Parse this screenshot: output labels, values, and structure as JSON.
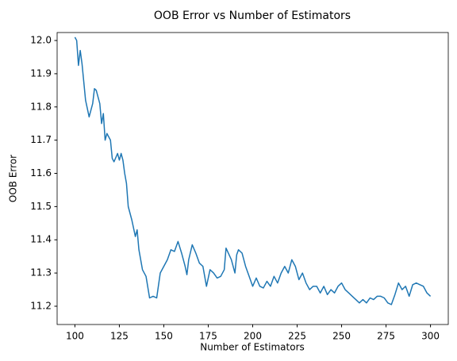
{
  "chart_data": {
    "type": "line",
    "title": "OOB Error vs Number of Estimators",
    "xlabel": "Number of Estimators",
    "ylabel": "OOB Error",
    "x": [
      100,
      101,
      102,
      103,
      104,
      106,
      108,
      110,
      111,
      112,
      114,
      115,
      116,
      117,
      118,
      120,
      121,
      122,
      124,
      125,
      126,
      127,
      128,
      129,
      130,
      132,
      134,
      135,
      136,
      138,
      140,
      142,
      144,
      146,
      148,
      150,
      152,
      154,
      156,
      158,
      160,
      162,
      163,
      164,
      166,
      168,
      170,
      172,
      174,
      176,
      178,
      180,
      182,
      184,
      185,
      188,
      190,
      191,
      192,
      194,
      196,
      198,
      200,
      202,
      204,
      206,
      208,
      210,
      212,
      214,
      216,
      218,
      220,
      222,
      224,
      226,
      228,
      230,
      232,
      234,
      236,
      238,
      240,
      242,
      244,
      246,
      248,
      250,
      252,
      254,
      256,
      258,
      260,
      262,
      264,
      266,
      268,
      270,
      272,
      274,
      276,
      278,
      280,
      282,
      284,
      286,
      288,
      290,
      292,
      294,
      296,
      298,
      300
    ],
    "series": [
      {
        "name": "OOB Error",
        "color": "#1f77b4",
        "values": [
          12.01,
          12.0,
          11.925,
          11.97,
          11.93,
          11.82,
          11.77,
          11.81,
          11.855,
          11.85,
          11.81,
          11.75,
          11.78,
          11.7,
          11.72,
          11.7,
          11.645,
          11.635,
          11.66,
          11.64,
          11.66,
          11.64,
          11.6,
          11.57,
          11.5,
          11.46,
          11.41,
          11.43,
          11.37,
          11.31,
          11.29,
          11.225,
          11.23,
          11.225,
          11.3,
          11.32,
          11.34,
          11.37,
          11.365,
          11.395,
          11.36,
          11.32,
          11.295,
          11.34,
          11.385,
          11.36,
          11.33,
          11.32,
          11.26,
          11.31,
          11.3,
          11.285,
          11.29,
          11.31,
          11.375,
          11.34,
          11.3,
          11.355,
          11.37,
          11.36,
          11.32,
          11.29,
          11.26,
          11.285,
          11.26,
          11.255,
          11.275,
          11.26,
          11.29,
          11.27,
          11.3,
          11.32,
          11.3,
          11.34,
          11.32,
          11.28,
          11.3,
          11.27,
          11.25,
          11.26,
          11.26,
          11.24,
          11.26,
          11.235,
          11.25,
          11.24,
          11.26,
          11.27,
          11.25,
          11.24,
          11.23,
          11.22,
          11.21,
          11.22,
          11.21,
          11.225,
          11.22,
          11.23,
          11.23,
          11.225,
          11.21,
          11.205,
          11.235,
          11.27,
          11.25,
          11.26,
          11.23,
          11.265,
          11.27,
          11.265,
          11.26,
          11.24,
          11.23
        ]
      }
    ],
    "xlim": [
      90,
      310
    ],
    "ylim": [
      11.145,
      12.024
    ],
    "xticks": [
      100,
      125,
      150,
      175,
      200,
      225,
      250,
      275,
      300
    ],
    "yticks": [
      11.2,
      11.3,
      11.4,
      11.5,
      11.6,
      11.7,
      11.8,
      11.9,
      {
        "value": 12,
        "label": "12.0"
      }
    ],
    "grid": false
  }
}
